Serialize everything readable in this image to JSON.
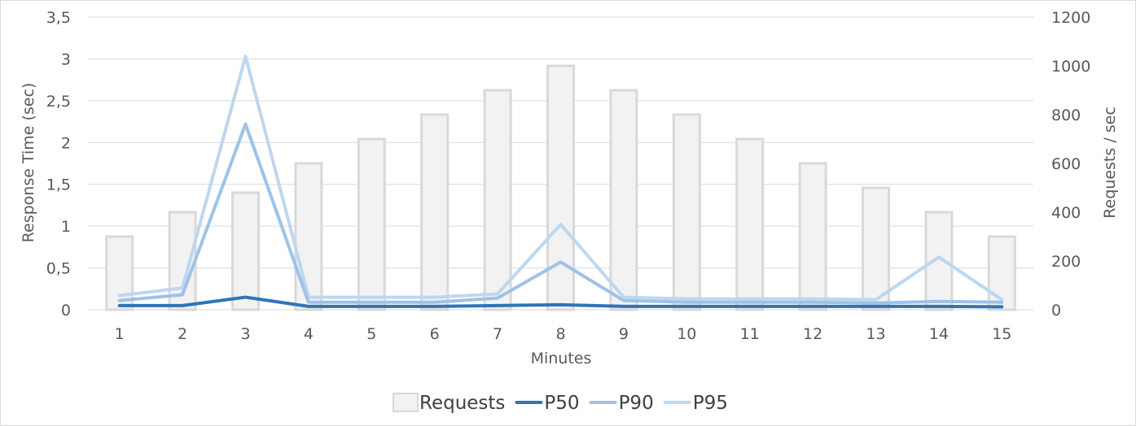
{
  "chart_data": {
    "type": "bar",
    "categories": [
      "1",
      "2",
      "3",
      "4",
      "5",
      "6",
      "7",
      "8",
      "9",
      "10",
      "11",
      "12",
      "13",
      "14",
      "15"
    ],
    "xlabel": "Minutes",
    "ylabel": "Response Time (sec)",
    "y2label": "Requests / sec",
    "ylim": [
      0,
      3.5
    ],
    "y2lim": [
      0,
      1200
    ],
    "yticks": [
      "0",
      "0,5",
      "1",
      "1,5",
      "2",
      "2,5",
      "3",
      "3,5"
    ],
    "y2ticks": [
      "0",
      "200",
      "400",
      "600",
      "800",
      "1000",
      "1200"
    ],
    "grid": true,
    "legend_position": "bottom",
    "series": [
      {
        "name": "Requests",
        "kind": "bar",
        "axis": "right",
        "color": "#f2f2f2",
        "border": "#d9d9d9",
        "values": [
          300,
          400,
          480,
          600,
          700,
          800,
          900,
          1000,
          900,
          800,
          700,
          600,
          500,
          400,
          300
        ]
      },
      {
        "name": "P50",
        "kind": "line",
        "axis": "left",
        "color": "#2e75b6",
        "values": [
          0.05,
          0.05,
          0.15,
          0.04,
          0.04,
          0.04,
          0.05,
          0.06,
          0.04,
          0.04,
          0.04,
          0.04,
          0.04,
          0.04,
          0.035
        ]
      },
      {
        "name": "P90",
        "kind": "line",
        "axis": "left",
        "color": "#9dc3e6",
        "values": [
          0.11,
          0.18,
          2.22,
          0.09,
          0.09,
          0.09,
          0.14,
          0.57,
          0.11,
          0.09,
          0.09,
          0.09,
          0.08,
          0.1,
          0.09
        ]
      },
      {
        "name": "P95",
        "kind": "line",
        "axis": "left",
        "color": "#bdd7ee",
        "values": [
          0.17,
          0.26,
          3.03,
          0.15,
          0.15,
          0.15,
          0.19,
          1.02,
          0.15,
          0.13,
          0.13,
          0.13,
          0.12,
          0.63,
          0.12
        ]
      }
    ]
  }
}
